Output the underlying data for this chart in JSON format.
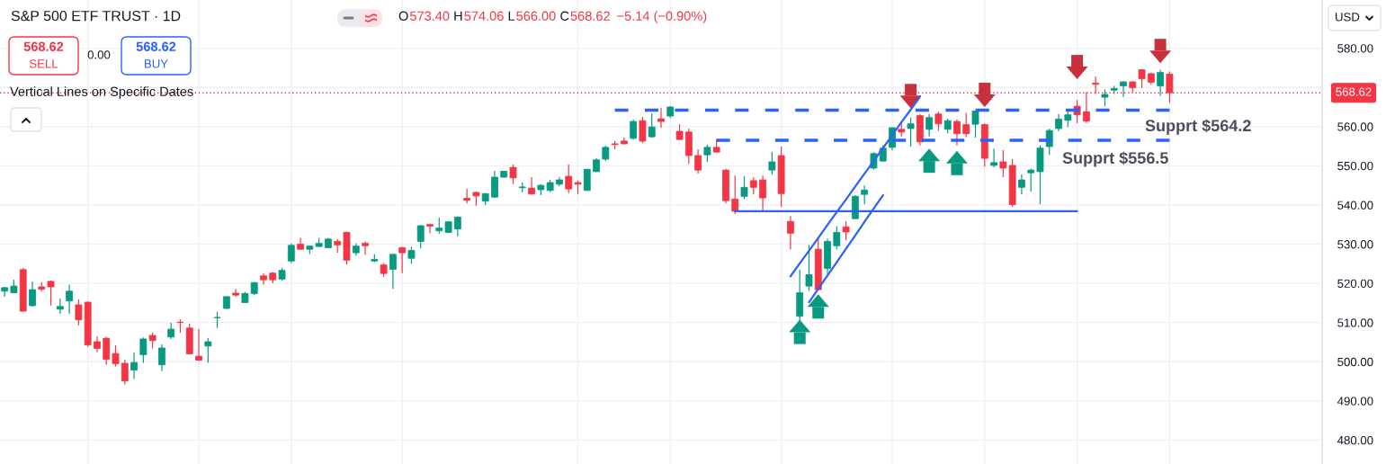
{
  "chart_data": {
    "type": "candlestick",
    "title": "S&P 500 ETF TRUST · 1D",
    "annotations": [
      "O",
      "573.40",
      "H",
      "574.06",
      "L",
      "566.00",
      "C",
      "568.62",
      "−5.14 (−0.90%)",
      "568.62",
      "SELL",
      "0.00",
      "568.62",
      "BUY",
      "Vertical Lines on Specific Dates",
      "USD"
    ],
    "categories": [
      null,
      null,
      null,
      null,
      null,
      null,
      null,
      null,
      null,
      null,
      null,
      null,
      null,
      null,
      null,
      null,
      null,
      null,
      null,
      null,
      null,
      null,
      null,
      null,
      null,
      null,
      null,
      null,
      null,
      null,
      null,
      null,
      null,
      null,
      null,
      null,
      null,
      null,
      null,
      null,
      null,
      null,
      null,
      null,
      null,
      null,
      null,
      null,
      null,
      null,
      null,
      null,
      null,
      null,
      null,
      null,
      null,
      null,
      null,
      null,
      null,
      null,
      null,
      null,
      null,
      null,
      null,
      null,
      null,
      null,
      null,
      null,
      null,
      null,
      null,
      null,
      null,
      null,
      null,
      null,
      null,
      null,
      null,
      null,
      null,
      null,
      null,
      null,
      null,
      null,
      null,
      null,
      null,
      null,
      null,
      null,
      null,
      null,
      null,
      null,
      null,
      null,
      null,
      null,
      null,
      null,
      null,
      null,
      null,
      null,
      null,
      null,
      null,
      null,
      null,
      null,
      null,
      null,
      null,
      null,
      null,
      null,
      null,
      null,
      null,
      null,
      null,
      null,
      null,
      null,
      null,
      null,
      null,
      null,
      null,
      null,
      null,
      null,
      null,
      null,
      null,
      null,
      null
    ],
    "ohlc": [
      [
        518.0,
        519.1,
        516.6,
        518.9
      ],
      [
        517.6,
        520.9,
        517.6,
        519.3
      ],
      [
        523.5,
        523.9,
        512.8,
        512.9
      ],
      [
        514.3,
        520.5,
        514.1,
        518.4
      ],
      [
        519.1,
        520.3,
        517.9,
        518.5
      ],
      [
        520.5,
        520.7,
        514.3,
        519.1
      ],
      [
        513.4,
        516.1,
        512.2,
        514.1
      ],
      [
        515.5,
        519.6,
        512.2,
        518.0
      ],
      [
        514.5,
        515.9,
        509.3,
        510.7
      ],
      [
        515.2,
        515.4,
        503.8,
        504.3
      ],
      [
        505.1,
        506.5,
        502.4,
        503.4
      ],
      [
        506.0,
        506.3,
        499.2,
        500.6
      ],
      [
        502.1,
        504.2,
        498.8,
        499.5
      ],
      [
        499.6,
        500.5,
        494.2,
        495.1
      ],
      [
        497.9,
        502.4,
        495.6,
        499.8
      ],
      [
        501.8,
        506.2,
        499.7,
        505.8
      ],
      [
        506.7,
        507.4,
        503.4,
        505.4
      ],
      [
        499.2,
        504.4,
        497.6,
        503.5
      ],
      [
        506.3,
        509.9,
        505.8,
        508.3
      ],
      [
        510.1,
        510.8,
        507.4,
        510.0
      ],
      [
        508.6,
        509.7,
        501.9,
        502.0
      ],
      [
        501.4,
        508.3,
        500.1,
        500.4
      ],
      [
        504.0,
        506.0,
        499.7,
        505.1
      ],
      [
        511.2,
        512.7,
        508.6,
        511.3
      ],
      [
        513.6,
        516.7,
        513.5,
        516.6
      ],
      [
        517.5,
        518.6,
        516.6,
        517.0
      ],
      [
        515.1,
        517.8,
        515.0,
        517.4
      ],
      [
        517.4,
        520.3,
        517.0,
        520.2
      ],
      [
        521.9,
        522.6,
        519.7,
        520.9
      ],
      [
        522.6,
        522.9,
        520.0,
        520.9
      ],
      [
        521.1,
        524.0,
        520.6,
        523.3
      ],
      [
        525.7,
        530.2,
        525.2,
        529.7
      ],
      [
        530.0,
        531.6,
        528.6,
        528.7
      ],
      [
        528.7,
        529.6,
        527.5,
        529.5
      ],
      [
        529.4,
        531.6,
        529.3,
        530.2
      ],
      [
        529.1,
        531.6,
        529.0,
        531.3
      ],
      [
        530.7,
        531.3,
        527.8,
        529.8
      ],
      [
        533.0,
        533.2,
        524.8,
        525.9
      ],
      [
        527.8,
        530.2,
        527.1,
        529.5
      ],
      [
        530.2,
        530.7,
        527.3,
        529.6
      ],
      [
        525.7,
        527.4,
        525.4,
        526.1
      ],
      [
        524.7,
        525.2,
        521.6,
        522.5
      ],
      [
        523.6,
        527.5,
        518.6,
        527.4
      ],
      [
        529.1,
        529.3,
        522.6,
        527.8
      ],
      [
        526.4,
        529.3,
        525.0,
        528.4
      ],
      [
        530.7,
        534.8,
        528.9,
        534.7
      ],
      [
        535.0,
        535.2,
        532.8,
        534.6
      ],
      [
        533.4,
        536.8,
        532.7,
        534.1
      ],
      [
        533.0,
        535.9,
        532.9,
        535.7
      ],
      [
        533.9,
        537.1,
        532.0,
        536.9
      ],
      [
        541.7,
        544.2,
        540.4,
        541.2
      ],
      [
        543.2,
        543.4,
        539.8,
        542.3
      ],
      [
        541.0,
        543.0,
        540.0,
        542.9
      ],
      [
        542.0,
        548.7,
        541.8,
        547.1
      ],
      [
        547.1,
        548.7,
        546.9,
        548.6
      ],
      [
        549.6,
        550.3,
        545.3,
        546.9
      ],
      [
        544.4,
        545.7,
        543.2,
        544.6
      ],
      [
        544.3,
        547.1,
        542.7,
        542.8
      ],
      [
        543.9,
        545.3,
        542.5,
        545.0
      ],
      [
        543.7,
        546.4,
        543.3,
        545.7
      ],
      [
        545.3,
        547.1,
        544.8,
        546.4
      ],
      [
        547.3,
        550.3,
        543.0,
        544.1
      ],
      [
        545.7,
        546.2,
        542.7,
        545.3
      ],
      [
        543.7,
        549.2,
        543.6,
        549.1
      ],
      [
        548.5,
        551.9,
        548.4,
        551.5
      ],
      [
        551.7,
        555.1,
        551.2,
        554.7
      ],
      [
        555.6,
        556.3,
        554.2,
        555.4
      ],
      [
        556.3,
        557.2,
        555.5,
        555.6
      ],
      [
        557.0,
        561.8,
        556.7,
        561.3
      ],
      [
        561.5,
        562.5,
        555.8,
        556.3
      ],
      [
        557.4,
        563.4,
        557.2,
        559.9
      ],
      [
        562.0,
        564.8,
        559.7,
        561.3
      ],
      [
        562.7,
        565.2,
        562.2,
        565.0
      ],
      [
        558.8,
        560.6,
        556.6,
        556.7
      ],
      [
        558.6,
        559.5,
        550.5,
        552.6
      ],
      [
        552.6,
        554.2,
        548.0,
        548.9
      ],
      [
        552.8,
        555.4,
        551.0,
        554.7
      ],
      [
        554.7,
        556.8,
        553.3,
        553.5
      ],
      [
        548.9,
        549.2,
        540.4,
        541.1
      ],
      [
        541.5,
        547.5,
        537.7,
        538.4
      ],
      [
        542.2,
        547.3,
        541.5,
        544.5
      ],
      [
        546.2,
        547.1,
        542.7,
        544.5
      ],
      [
        546.4,
        547.5,
        538.4,
        541.8
      ],
      [
        548.9,
        553.5,
        547.8,
        551.0
      ],
      [
        552.6,
        554.9,
        539.5,
        542.9
      ],
      [
        535.8,
        537.2,
        528.7,
        532.8
      ],
      [
        511.6,
        523.5,
        510.4,
        517.6
      ],
      [
        519.3,
        529.8,
        518.1,
        522.2
      ],
      [
        528.7,
        531.7,
        518.2,
        518.4
      ],
      [
        523.8,
        531.4,
        522.4,
        530.7
      ],
      [
        529.6,
        534.6,
        528.7,
        533.0
      ],
      [
        534.4,
        535.8,
        531.0,
        533.1
      ],
      [
        536.5,
        542.5,
        536.4,
        542.2
      ],
      [
        542.7,
        545.0,
        540.2,
        543.8
      ],
      [
        549.4,
        553.5,
        549.0,
        553.1
      ],
      [
        551.2,
        555.2,
        551.1,
        554.5
      ],
      [
        554.7,
        559.8,
        554.0,
        559.7
      ],
      [
        559.3,
        560.9,
        557.5,
        558.6
      ],
      [
        559.5,
        562.3,
        554.9,
        560.7
      ],
      [
        562.8,
        563.2,
        555.2,
        556.1
      ],
      [
        559.3,
        563.2,
        557.5,
        562.3
      ],
      [
        563.2,
        563.8,
        559.0,
        560.7
      ],
      [
        559.3,
        562.0,
        558.3,
        561.5
      ],
      [
        561.3,
        561.8,
        555.2,
        558.2
      ],
      [
        560.5,
        563.5,
        557.3,
        558.2
      ],
      [
        560.6,
        564.1,
        557.2,
        564.0
      ],
      [
        560.5,
        560.8,
        549.8,
        551.9
      ],
      [
        550.1,
        554.4,
        549.6,
        550.8
      ],
      [
        551.0,
        554.0,
        547.1,
        549.4
      ],
      [
        550.1,
        551.7,
        539.5,
        540.1
      ],
      [
        544.5,
        547.8,
        542.7,
        546.4
      ],
      [
        548.2,
        549.2,
        543.4,
        548.9
      ],
      [
        548.5,
        555.2,
        540.2,
        554.5
      ],
      [
        554.9,
        559.5,
        552.8,
        559.0
      ],
      [
        559.5,
        563.2,
        558.8,
        561.9
      ],
      [
        561.6,
        563.9,
        559.9,
        563.0
      ],
      [
        565.2,
        566.8,
        560.9,
        563.0
      ],
      [
        563.8,
        568.8,
        560.9,
        561.4
      ],
      [
        571.1,
        572.8,
        568.3,
        570.8
      ],
      [
        567.5,
        569.5,
        565.2,
        568.2
      ],
      [
        569.3,
        570.4,
        568.3,
        569.7
      ],
      [
        570.4,
        571.6,
        567.6,
        571.4
      ],
      [
        571.4,
        571.6,
        568.8,
        569.9
      ],
      [
        574.5,
        574.6,
        569.8,
        572.2
      ],
      [
        573.5,
        573.8,
        570.7,
        571.3
      ],
      [
        570.4,
        574.5,
        567.8,
        573.8
      ],
      [
        573.4,
        574.06,
        566.0,
        568.62
      ],
      null,
      null,
      null,
      null,
      null,
      null,
      null,
      null,
      null,
      null,
      null,
      null,
      null,
      null,
      null,
      null
    ],
    "colors": [
      "#089981",
      "#089981",
      "#f23645",
      "#089981",
      "#f23645",
      "#f23645",
      "#089981",
      "#089981",
      "#f23645",
      "#f23645",
      "#f23645",
      "#f23645",
      "#f23645",
      "#f23645",
      "#089981",
      "#089981",
      "#f23645",
      "#089981",
      "#089981",
      "#f23645",
      "#f23645",
      "#f23645",
      "#089981",
      "#089981",
      "#089981",
      "#f23645",
      "#089981",
      "#089981",
      "#f23645",
      "#f23645",
      "#089981",
      "#089981",
      "#f23645",
      "#089981",
      "#089981",
      "#089981",
      "#f23645",
      "#f23645",
      "#089981",
      "#f23645",
      "#089981",
      "#f23645",
      "#089981",
      "#f23645",
      "#089981",
      "#089981",
      "#f23645",
      "#089981",
      "#089981",
      "#089981",
      "#f23645",
      "#f23645",
      "#089981",
      "#089981",
      "#089981",
      "#f23645",
      "#089981",
      "#f23645",
      "#089981",
      "#089981",
      "#089981",
      "#f23645",
      "#f23645",
      "#089981",
      "#089981",
      "#089981",
      "#f23645",
      "#f23645",
      "#089981",
      "#f23645",
      "#089981",
      "#f23645",
      "#089981",
      "#f23645",
      "#f23645",
      "#f23645",
      "#089981",
      "#f23645",
      "#f23645",
      "#f23645",
      "#089981",
      "#f23645",
      "#f23645",
      "#089981",
      "#f23645",
      "#f23645",
      "#089981",
      "#089981",
      "#f23645",
      "#089981",
      "#089981",
      "#f23645",
      "#089981",
      "#089981",
      "#089981",
      "#089981",
      "#089981",
      "#f23645",
      "#089981",
      "#f23645",
      "#089981",
      "#f23645",
      "#089981",
      "#f23645",
      "#f23645",
      "#089981",
      "#f23645",
      "#089981",
      "#f23645",
      "#f23645",
      "#089981",
      "#089981",
      "#089981",
      "#089981",
      "#089981",
      "#089981",
      "#f23645",
      "#f23645",
      "#f23645",
      "#089981",
      "#089981",
      "#089981",
      "#f23645",
      "#f23645",
      "#f23645",
      "#089981",
      "#f23645",
      null,
      null,
      null,
      null,
      null,
      null,
      null,
      null,
      null,
      null,
      null,
      null,
      null,
      null,
      null,
      null
    ],
    "series": [
      {
        "type": "line",
        "name": "Supprt $564.2",
        "color": "#2962ff",
        "line_style": "dashed",
        "values": [
          null,
          null,
          null,
          null,
          null,
          null,
          null,
          null,
          null,
          null,
          null,
          null,
          null,
          null,
          null,
          null,
          null,
          null,
          null,
          null,
          null,
          null,
          null,
          null,
          null,
          null,
          null,
          null,
          null,
          null,
          null,
          null,
          null,
          null,
          null,
          null,
          null,
          null,
          null,
          null,
          null,
          null,
          null,
          null,
          null,
          null,
          null,
          null,
          null,
          null,
          null,
          null,
          null,
          null,
          null,
          null,
          null,
          null,
          null,
          null,
          null,
          null,
          null,
          null,
          null,
          null,
          564.2,
          564.2,
          564.2,
          564.2,
          564.2,
          564.2,
          564.2,
          564.2,
          564.2,
          564.2,
          564.2,
          564.2,
          564.2,
          564.2,
          564.2,
          564.2,
          564.2,
          564.2,
          564.2,
          564.2,
          564.2,
          564.2,
          564.2,
          564.2,
          564.2,
          564.2,
          564.2,
          564.2,
          564.2,
          564.2,
          564.2,
          564.2,
          564.2,
          564.2,
          564.2,
          564.2,
          564.2,
          564.2,
          564.2,
          564.2,
          564.2,
          564.2,
          564.2,
          564.2,
          564.2,
          564.2,
          564.2,
          564.2,
          564.2,
          564.2,
          564.2,
          564.2,
          564.2,
          564.2,
          564.2,
          564.2,
          564.2,
          564.2,
          564.2,
          564.2,
          564.2,
          null,
          null,
          null,
          null,
          null,
          null,
          null,
          null,
          null,
          null,
          null,
          null,
          null,
          null,
          null,
          null
        ]
      },
      {
        "type": "line",
        "name": "Supprt $556.5",
        "color": "#2962ff",
        "line_style": "dashed",
        "values": [
          null,
          null,
          null,
          null,
          null,
          null,
          null,
          null,
          null,
          null,
          null,
          null,
          null,
          null,
          null,
          null,
          null,
          null,
          null,
          null,
          null,
          null,
          null,
          null,
          null,
          null,
          null,
          null,
          null,
          null,
          null,
          null,
          null,
          null,
          null,
          null,
          null,
          null,
          null,
          null,
          null,
          null,
          null,
          null,
          null,
          null,
          null,
          null,
          null,
          null,
          null,
          null,
          null,
          null,
          null,
          null,
          null,
          null,
          null,
          null,
          null,
          null,
          null,
          null,
          null,
          null,
          null,
          null,
          null,
          null,
          null,
          null,
          null,
          null,
          null,
          null,
          null,
          556.5,
          556.5,
          556.5,
          556.5,
          556.5,
          556.5,
          556.5,
          556.5,
          556.5,
          556.5,
          556.5,
          556.5,
          556.5,
          556.5,
          556.5,
          556.5,
          556.5,
          556.5,
          556.5,
          556.5,
          556.5,
          556.5,
          556.5,
          556.5,
          556.5,
          556.5,
          556.5,
          556.5,
          556.5,
          556.5,
          556.5,
          556.5,
          556.5,
          556.5,
          556.5,
          556.5,
          556.5,
          556.5,
          556.5,
          556.5,
          556.5,
          556.5,
          556.5,
          556.5,
          556.5,
          556.5,
          556.5,
          556.5,
          556.5,
          556.5,
          null,
          null,
          null,
          null,
          null,
          null,
          null,
          null,
          null,
          null,
          null,
          null,
          null,
          null,
          null,
          null
        ]
      },
      {
        "type": "line",
        "color": "#2962ff",
        "values": [
          null,
          null,
          null,
          null,
          null,
          null,
          null,
          null,
          null,
          null,
          null,
          null,
          null,
          null,
          null,
          null,
          null,
          null,
          null,
          null,
          null,
          null,
          null,
          null,
          null,
          null,
          null,
          null,
          null,
          null,
          null,
          null,
          null,
          null,
          null,
          null,
          null,
          null,
          null,
          null,
          null,
          null,
          null,
          null,
          null,
          null,
          null,
          null,
          null,
          null,
          null,
          null,
          null,
          null,
          null,
          null,
          null,
          null,
          null,
          null,
          null,
          null,
          null,
          null,
          null,
          null,
          null,
          null,
          null,
          null,
          null,
          null,
          null,
          null,
          null,
          null,
          null,
          null,
          null,
          538.4,
          538.4,
          538.4,
          538.4,
          538.4,
          538.4,
          538.4,
          538.4,
          538.4,
          538.4,
          538.4,
          538.4,
          538.4,
          538.4,
          538.4,
          538.4,
          538.4,
          538.4,
          538.4,
          538.4,
          538.4,
          538.4,
          538.4,
          538.4,
          538.4,
          538.4,
          538.4,
          538.4,
          538.4,
          538.4,
          538.4,
          538.4,
          538.4,
          538.4,
          538.4,
          538.4,
          538.4,
          538.4,
          null,
          null,
          null,
          null,
          null,
          null,
          null,
          null,
          null,
          null,
          null,
          null,
          null,
          null,
          null,
          null,
          null,
          null,
          null,
          null,
          null,
          null,
          null,
          null,
          null,
          null
        ]
      },
      {
        "type": "line",
        "color": "#2962ff",
        "values": [
          null,
          null,
          null,
          null,
          null,
          null,
          null,
          null,
          null,
          null,
          null,
          null,
          null,
          null,
          null,
          null,
          null,
          null,
          null,
          null,
          null,
          null,
          null,
          null,
          null,
          null,
          null,
          null,
          null,
          null,
          null,
          null,
          null,
          null,
          null,
          null,
          null,
          null,
          null,
          null,
          null,
          null,
          null,
          null,
          null,
          null,
          null,
          null,
          null,
          null,
          null,
          null,
          null,
          null,
          null,
          null,
          null,
          null,
          null,
          null,
          null,
          null,
          null,
          null,
          null,
          null,
          null,
          null,
          null,
          null,
          null,
          null,
          null,
          null,
          null,
          null,
          null,
          null,
          null,
          null,
          null,
          null,
          null,
          null,
          null,
          521.8,
          525.1,
          528.3,
          531.6,
          534.9,
          538.2,
          541.4,
          544.7,
          548.0,
          551.2,
          554.5,
          557.8,
          561.1,
          564.3,
          567.6,
          null,
          null,
          null,
          null,
          null,
          null,
          null,
          null,
          null,
          null,
          null,
          null,
          null,
          null,
          null,
          null,
          null,
          null,
          null,
          null,
          null,
          null,
          null,
          null,
          null,
          null,
          null,
          null,
          null,
          null,
          null,
          null,
          null,
          null,
          null,
          null,
          null,
          null,
          null,
          null,
          null,
          null,
          null
        ]
      },
      {
        "type": "line",
        "color": "#2962ff",
        "values": [
          null,
          null,
          null,
          null,
          null,
          null,
          null,
          null,
          null,
          null,
          null,
          null,
          null,
          null,
          null,
          null,
          null,
          null,
          null,
          null,
          null,
          null,
          null,
          null,
          null,
          null,
          null,
          null,
          null,
          null,
          null,
          null,
          null,
          null,
          null,
          null,
          null,
          null,
          null,
          null,
          null,
          null,
          null,
          null,
          null,
          null,
          null,
          null,
          null,
          null,
          null,
          null,
          null,
          null,
          null,
          null,
          null,
          null,
          null,
          null,
          null,
          null,
          null,
          null,
          null,
          null,
          null,
          null,
          null,
          null,
          null,
          null,
          null,
          null,
          null,
          null,
          null,
          null,
          null,
          null,
          null,
          null,
          null,
          null,
          null,
          null,
          null,
          515.2,
          518.6,
          522.0,
          525.4,
          528.8,
          532.2,
          535.7,
          539.1,
          542.5,
          null,
          null,
          null,
          null,
          null,
          null,
          null,
          null,
          null,
          null,
          null,
          null,
          null,
          null,
          null,
          null,
          null,
          null,
          null,
          null,
          null,
          null,
          null,
          null,
          null,
          null,
          null,
          null,
          null,
          null,
          null,
          null,
          null,
          null,
          null,
          null,
          null,
          null,
          null,
          null,
          null,
          null,
          null,
          null,
          null,
          null,
          null
        ]
      },
      {
        "type": "scatter",
        "color": "#089981",
        "marker": "triangle",
        "values": [
          null,
          null,
          null,
          null,
          null,
          null,
          null,
          null,
          null,
          null,
          null,
          null,
          null,
          null,
          null,
          null,
          null,
          null,
          null,
          null,
          null,
          null,
          null,
          null,
          null,
          null,
          null,
          null,
          null,
          null,
          null,
          null,
          null,
          null,
          null,
          null,
          null,
          null,
          null,
          null,
          null,
          null,
          null,
          null,
          null,
          null,
          null,
          null,
          null,
          null,
          null,
          null,
          null,
          null,
          null,
          null,
          null,
          null,
          null,
          null,
          null,
          null,
          null,
          null,
          null,
          null,
          null,
          null,
          null,
          null,
          null,
          null,
          null,
          null,
          null,
          null,
          null,
          null,
          null,
          null,
          null,
          null,
          null,
          null,
          null,
          null,
          509.1,
          null,
          515.6,
          null,
          null,
          null,
          null,
          null,
          null,
          null,
          null,
          null,
          null,
          null,
          552.8,
          null,
          null,
          552.2,
          null,
          null,
          null,
          null,
          null,
          null,
          null,
          null,
          null,
          null,
          null,
          null,
          null,
          null,
          null,
          null,
          null,
          null,
          null,
          null,
          null,
          null,
          null,
          null,
          null,
          null,
          null,
          null,
          null,
          null,
          null,
          null,
          null,
          null,
          null,
          null,
          null,
          null,
          null
        ]
      },
      {
        "type": "scatter",
        "color": "#c8303c",
        "marker": "triangle",
        "values": [
          null,
          null,
          null,
          null,
          null,
          null,
          null,
          null,
          null,
          null,
          null,
          null,
          null,
          null,
          null,
          null,
          null,
          null,
          null,
          null,
          null,
          null,
          null,
          null,
          null,
          null,
          null,
          null,
          null,
          null,
          null,
          null,
          null,
          null,
          null,
          null,
          null,
          null,
          null,
          null,
          null,
          null,
          null,
          null,
          null,
          null,
          null,
          null,
          null,
          null,
          null,
          null,
          null,
          null,
          null,
          null,
          null,
          null,
          null,
          null,
          null,
          null,
          null,
          null,
          null,
          null,
          null,
          null,
          null,
          null,
          null,
          null,
          null,
          null,
          null,
          null,
          null,
          null,
          null,
          null,
          null,
          null,
          null,
          null,
          null,
          null,
          null,
          null,
          null,
          null,
          null,
          null,
          null,
          null,
          null,
          null,
          null,
          null,
          566.3,
          null,
          null,
          null,
          null,
          null,
          null,
          null,
          566.6,
          null,
          null,
          null,
          null,
          null,
          null,
          null,
          null,
          null,
          573.7,
          null,
          null,
          null,
          null,
          null,
          null,
          null,
          null,
          577.8,
          null,
          null,
          null,
          null,
          null,
          null,
          null,
          null,
          null,
          null,
          null,
          null,
          null,
          null,
          null,
          null,
          null
        ]
      }
    ],
    "ref_lines": [
      {
        "axis": "y",
        "value": 568.62,
        "label": "568.62",
        "color": "#f23645",
        "line_style": "dotted"
      }
    ],
    "ylim": [
      473.9,
      592.3
    ],
    "yticks": [
      {
        "value": 480,
        "label": "480.00"
      },
      {
        "value": 490,
        "label": "490.00"
      },
      {
        "value": 500,
        "label": "500.00"
      },
      {
        "value": 510,
        "label": "510.00"
      },
      {
        "value": 520,
        "label": "520.00"
      },
      {
        "value": 530,
        "label": "530.00"
      },
      {
        "value": 540,
        "label": "540.00"
      },
      {
        "value": 550,
        "label": "550.00"
      },
      {
        "value": 560,
        "label": "560.00"
      },
      {
        "value": 570,
        "label": null
      },
      {
        "value": 580,
        "label": "580.00"
      }
    ],
    "grid": true,
    "tick_labels": "y"
  }
}
